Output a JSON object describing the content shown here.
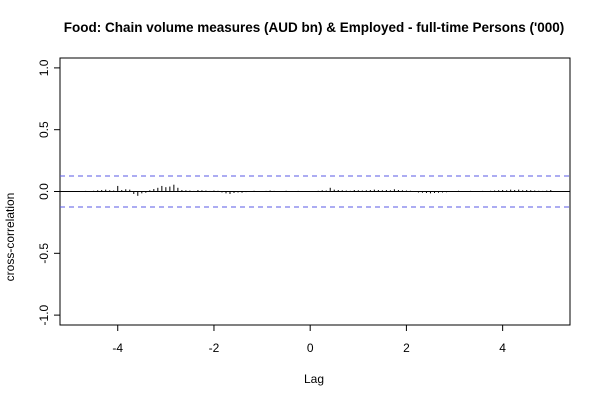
{
  "chart_data": {
    "type": "bar",
    "title": "Food: Chain volume measures (AUD bn) & Employed - full-time Persons ('000)",
    "xlabel": "Lag",
    "ylabel": "cross-correlation",
    "xlim": [
      -5.2,
      5.4
    ],
    "ylim": [
      -1.08,
      1.08
    ],
    "x_ticks": [
      -4,
      -2,
      0,
      2,
      4
    ],
    "y_ticks": [
      -1.0,
      -0.5,
      0.0,
      0.5,
      1.0
    ],
    "x_tick_labels": [
      "-4",
      "-2",
      "0",
      "2",
      "4"
    ],
    "y_tick_labels": [
      "-1.0",
      "-0.5",
      "0.0",
      "0.5",
      "1.0"
    ],
    "confidence_band": 0.125,
    "lag_start": -5.0,
    "lag_step": 0.08333333,
    "values": [
      -0.003,
      0.002,
      -0.004,
      0.003,
      0.005,
      -0.002,
      0.006,
      0.01,
      0.012,
      0.015,
      0.01,
      0.008,
      0.045,
      0.012,
      0.018,
      0.015,
      -0.02,
      -0.035,
      -0.015,
      -0.01,
      0.01,
      0.02,
      0.03,
      0.045,
      0.035,
      0.04,
      0.055,
      0.03,
      0.012,
      0.01,
      0.008,
      0.005,
      0.012,
      0.01,
      0.008,
      0.005,
      0.008,
      0.006,
      -0.008,
      -0.015,
      -0.02,
      -0.012,
      -0.008,
      -0.01,
      -0.005,
      0.004,
      0.006,
      0.004,
      0.003,
      0.005,
      0.008,
      0.005,
      0.003,
      0.004,
      0.006,
      0.004,
      0.003,
      0.005,
      0.004,
      0.003,
      0.002,
      0.004,
      0.006,
      0.01,
      0.008,
      0.03,
      0.015,
      0.012,
      0.01,
      0.008,
      0.006,
      0.012,
      0.01,
      0.008,
      0.01,
      0.012,
      0.015,
      0.012,
      0.01,
      0.012,
      0.01,
      0.018,
      0.012,
      0.01,
      0.008,
      0.006,
      -0.004,
      -0.008,
      -0.01,
      -0.012,
      -0.015,
      -0.012,
      -0.01,
      -0.008,
      -0.006,
      -0.004,
      0.004,
      0.006,
      0.004,
      0.003,
      0.005,
      0.004,
      0.003,
      0.005,
      0.004,
      0.006,
      0.008,
      0.01,
      0.012,
      0.01,
      0.015,
      0.012,
      0.015,
      0.01,
      0.012,
      0.01,
      0.008,
      0.006,
      0.005,
      0.008,
      0.012
    ],
    "colors": {
      "bars": "#000000",
      "band": "#5a5ae6",
      "frame": "#000000"
    }
  }
}
